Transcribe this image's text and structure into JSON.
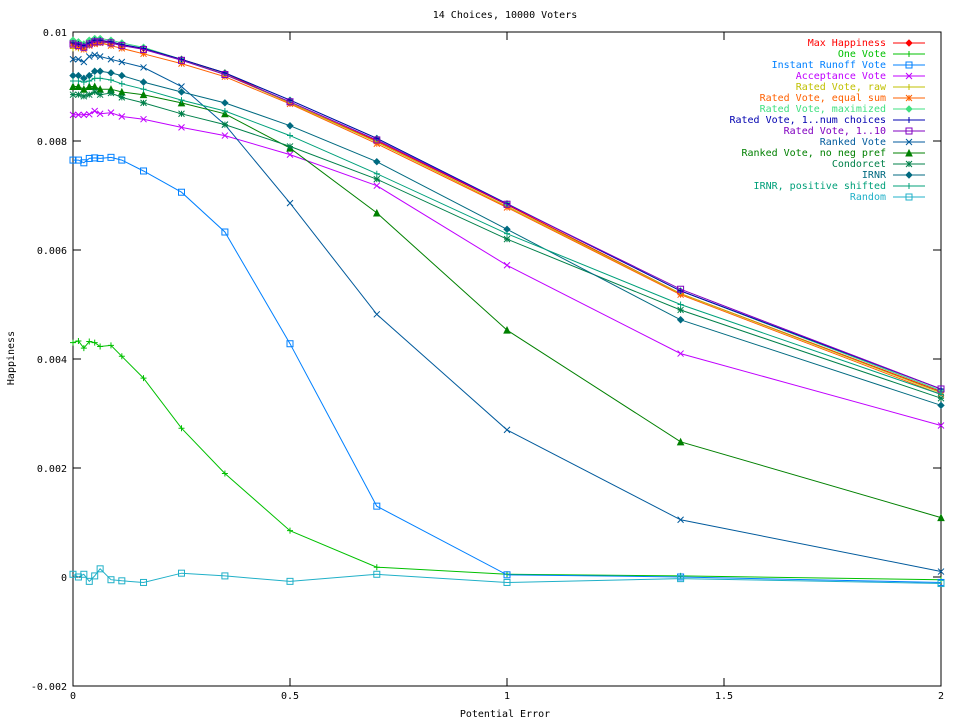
{
  "chart_data": {
    "type": "line",
    "title": "14 Choices, 10000 Voters",
    "xlabel": "Potential Error",
    "ylabel": "Happiness",
    "xlim": [
      0,
      2
    ],
    "ylim": [
      -0.002,
      0.01
    ],
    "xticks": [
      {
        "value": 0,
        "label": "0"
      },
      {
        "value": 0.5,
        "label": "0.5"
      },
      {
        "value": 1,
        "label": "1"
      },
      {
        "value": 1.5,
        "label": "1.5"
      },
      {
        "value": 2,
        "label": "2"
      }
    ],
    "yticks": [
      {
        "value": -0.002,
        "label": "-0.002"
      },
      {
        "value": 0,
        "label": "0"
      },
      {
        "value": 0.002,
        "label": "0.002"
      },
      {
        "value": 0.004,
        "label": "0.004"
      },
      {
        "value": 0.006,
        "label": "0.006"
      },
      {
        "value": 0.008,
        "label": "0.008"
      },
      {
        "value": 0.01,
        "label": "0.01"
      }
    ],
    "grid": false,
    "legend_position": "top-right",
    "x": [
      0,
      0.0125,
      0.025,
      0.0375,
      0.05,
      0.0625,
      0.0875,
      0.1125,
      0.1625,
      0.25,
      0.35,
      0.5,
      0.7,
      1,
      1.4,
      2
    ],
    "series": [
      {
        "name": "Max Happiness",
        "color": "#ff0000",
        "marker": "diamond",
        "values": [
          0.0098,
          0.0098,
          0.00975,
          0.0098,
          0.0098,
          0.00985,
          0.0098,
          0.00975,
          0.0097,
          0.0095,
          0.00925,
          0.0087,
          0.008,
          0.00683,
          0.0052,
          0.0034
        ]
      },
      {
        "name": "One Vote",
        "color": "#00c000",
        "marker": "plus",
        "values": [
          0.0043,
          0.00433,
          0.0042,
          0.00432,
          0.0043,
          0.00423,
          0.00425,
          0.00405,
          0.00365,
          0.00273,
          0.0019,
          0.00085,
          0.00018,
          5e-05,
          2e-05,
          -5e-05
        ]
      },
      {
        "name": "Instant Runoff Vote",
        "color": "#0080ff",
        "marker": "square",
        "values": [
          0.00765,
          0.00765,
          0.0076,
          0.00768,
          0.00769,
          0.00768,
          0.0077,
          0.00765,
          0.00745,
          0.00706,
          0.00633,
          0.00428,
          0.0013,
          4e-05,
          0,
          -0.0001
        ]
      },
      {
        "name": "Acceptance Vote",
        "color": "#c000ff",
        "marker": "cross",
        "values": [
          0.00848,
          0.00848,
          0.00848,
          0.00849,
          0.00855,
          0.0085,
          0.00852,
          0.00845,
          0.0084,
          0.00825,
          0.0081,
          0.00775,
          0.00718,
          0.00572,
          0.0041,
          0.00278
        ]
      },
      {
        "name": "Rated Vote, raw",
        "color": "#c0c000",
        "marker": "plus",
        "values": [
          0.0097,
          0.0097,
          0.00972,
          0.00975,
          0.0098,
          0.0098,
          0.0098,
          0.00975,
          0.0097,
          0.0095,
          0.00922,
          0.0087,
          0.00798,
          0.0068,
          0.0052,
          0.00338
        ]
      },
      {
        "name": "Rated Vote, equal sum",
        "color": "#ff6000",
        "marker": "star",
        "values": [
          0.00975,
          0.00972,
          0.00968,
          0.00975,
          0.00978,
          0.0098,
          0.00975,
          0.0097,
          0.0096,
          0.00942,
          0.00918,
          0.00868,
          0.00795,
          0.00678,
          0.00518,
          0.00335
        ]
      },
      {
        "name": "Rated Vote, maximized",
        "color": "#40e080",
        "marker": "diamond",
        "values": [
          0.00985,
          0.00982,
          0.00978,
          0.00985,
          0.00988,
          0.00988,
          0.00985,
          0.0098,
          0.00972,
          0.0095,
          0.00925,
          0.00875,
          0.00805,
          0.00685,
          0.00525,
          0.00342
        ]
      },
      {
        "name": "Rated Vote, 1..num choices",
        "color": "#0000b0",
        "marker": "plus",
        "values": [
          0.0098,
          0.00978,
          0.00975,
          0.0098,
          0.00985,
          0.00985,
          0.00982,
          0.00977,
          0.0097,
          0.0095,
          0.00925,
          0.00875,
          0.00805,
          0.00685,
          0.00525,
          0.00345
        ]
      },
      {
        "name": "Rated Vote, 1..10",
        "color": "#8000c0",
        "marker": "square",
        "values": [
          0.00978,
          0.00975,
          0.00972,
          0.00978,
          0.00982,
          0.00982,
          0.0098,
          0.00975,
          0.00968,
          0.00948,
          0.00922,
          0.00872,
          0.00802,
          0.00684,
          0.00528,
          0.00345
        ]
      },
      {
        "name": "Ranked Vote",
        "color": "#005a9c",
        "marker": "cross",
        "values": [
          0.0095,
          0.0095,
          0.00945,
          0.00955,
          0.00958,
          0.00955,
          0.0095,
          0.00945,
          0.00935,
          0.009,
          0.0083,
          0.00686,
          0.00482,
          0.0027,
          0.00105,
          0.0001
        ]
      },
      {
        "name": "Ranked Vote, no neg pref",
        "color": "#008000",
        "marker": "triangle",
        "values": [
          0.009,
          0.009,
          0.00895,
          0.009,
          0.009,
          0.00895,
          0.00895,
          0.0089,
          0.00885,
          0.0087,
          0.0085,
          0.00787,
          0.00668,
          0.00453,
          0.00248,
          0.00109
        ]
      },
      {
        "name": "Condorcet",
        "color": "#00804a",
        "marker": "star",
        "values": [
          0.00885,
          0.00885,
          0.00882,
          0.00885,
          0.0089,
          0.00885,
          0.00888,
          0.0088,
          0.0087,
          0.0085,
          0.0083,
          0.0079,
          0.0073,
          0.0062,
          0.0049,
          0.00328
        ]
      },
      {
        "name": "IRNR",
        "color": "#006a80",
        "marker": "diamond",
        "values": [
          0.0092,
          0.0092,
          0.00915,
          0.0092,
          0.00928,
          0.00928,
          0.00925,
          0.0092,
          0.00908,
          0.0089,
          0.0087,
          0.00828,
          0.00762,
          0.00638,
          0.00472,
          0.00315
        ]
      },
      {
        "name": "IRNR, positive shifted",
        "color": "#00a07a",
        "marker": "plus",
        "values": [
          0.0091,
          0.0091,
          0.00908,
          0.0091,
          0.00915,
          0.00915,
          0.00912,
          0.00905,
          0.00895,
          0.00875,
          0.00855,
          0.0081,
          0.0074,
          0.0063,
          0.005,
          0.00335
        ]
      },
      {
        "name": "Random",
        "color": "#20b0c8",
        "marker": "square",
        "values": [
          5e-05,
          0,
          5e-05,
          -8e-05,
          2e-05,
          0.00015,
          -5e-05,
          -7e-05,
          -0.0001,
          7e-05,
          2e-05,
          -8e-05,
          5e-05,
          -0.0001,
          -3e-05,
          -0.00012
        ]
      }
    ]
  }
}
